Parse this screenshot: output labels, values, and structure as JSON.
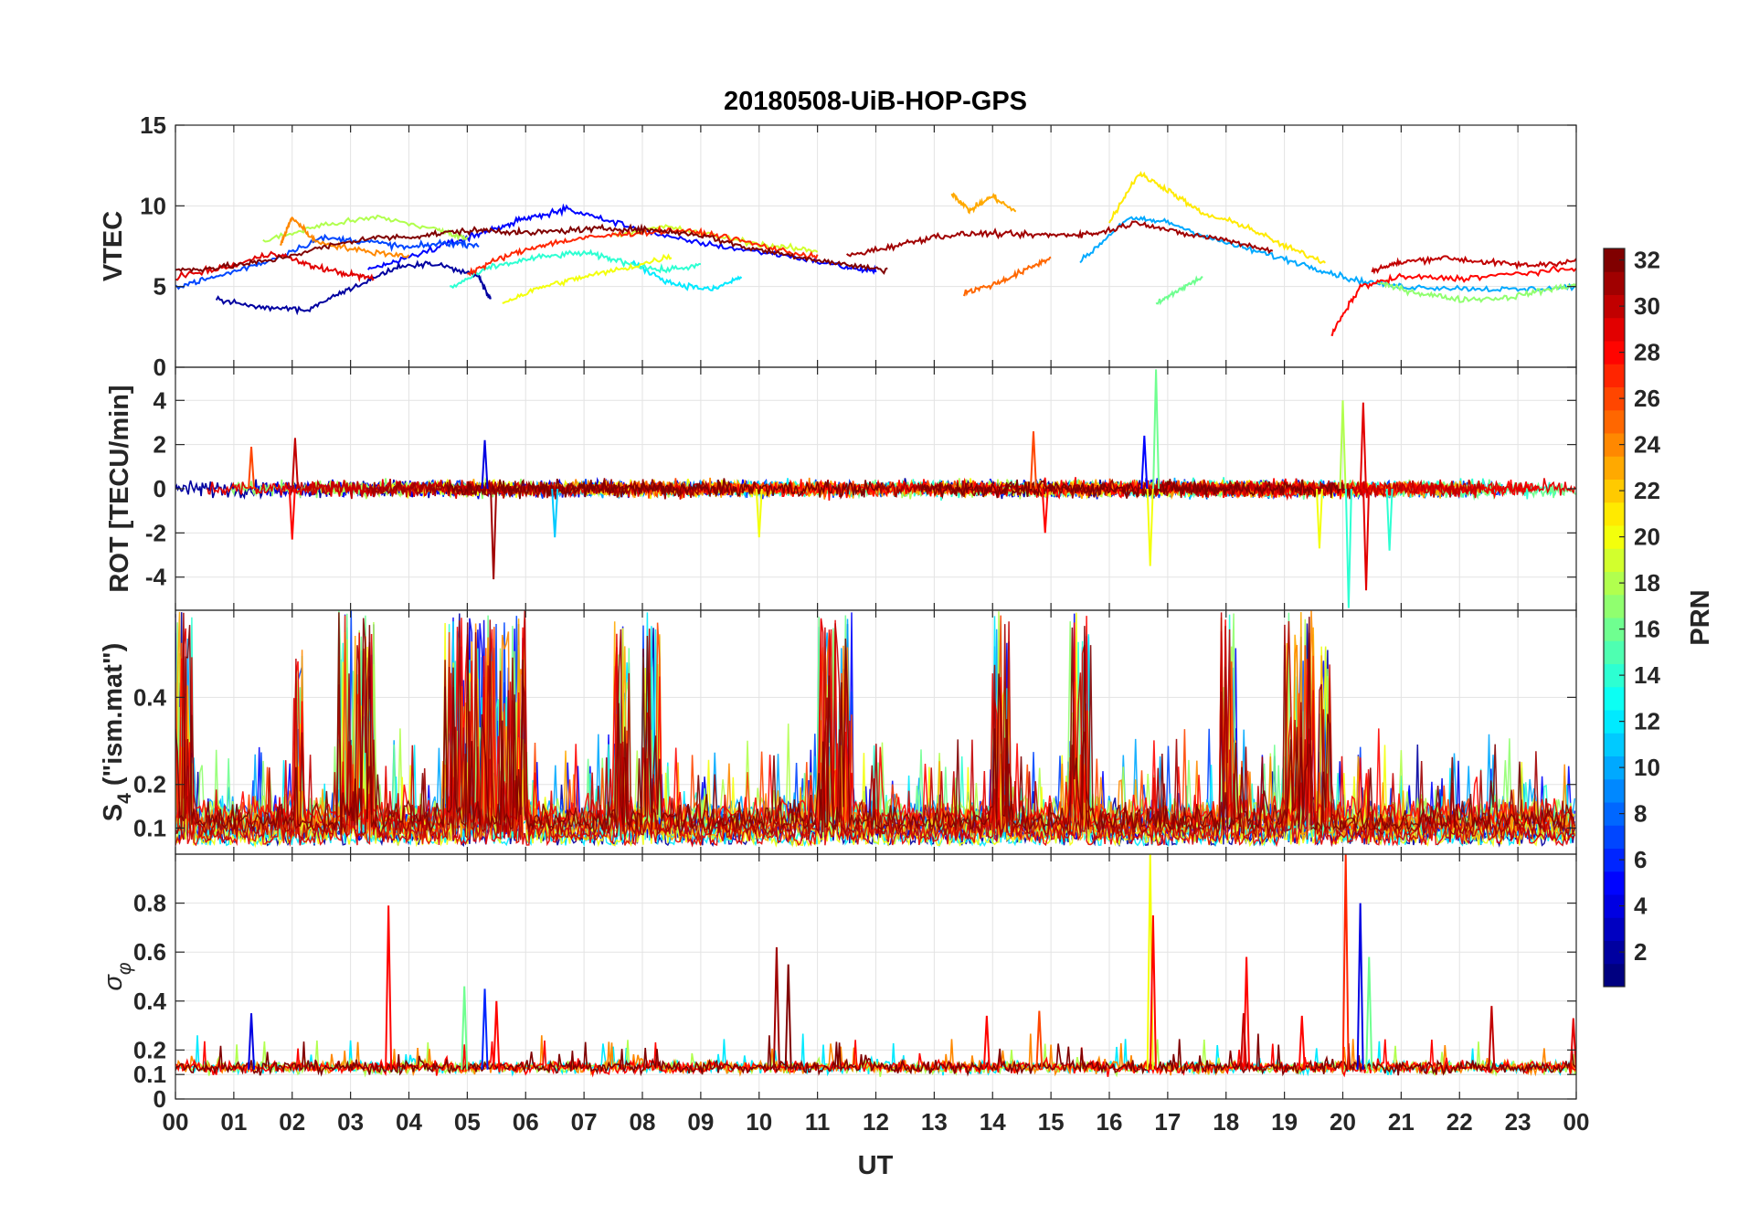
{
  "chart_data": {
    "type": "line",
    "title": "20180508-UiB-HOP-GPS",
    "xlabel": "UT",
    "x_ticks": [
      "00",
      "01",
      "02",
      "03",
      "04",
      "05",
      "06",
      "07",
      "08",
      "09",
      "10",
      "11",
      "12",
      "13",
      "14",
      "15",
      "16",
      "17",
      "18",
      "19",
      "20",
      "21",
      "22",
      "23",
      "00"
    ],
    "xlim": [
      0,
      24
    ],
    "panels": [
      {
        "name": "vtec",
        "ylabel": "VTEC",
        "ylim": [
          0,
          15
        ],
        "yticks": [
          0,
          5,
          10,
          15
        ],
        "series": [
          {
            "prn": 2,
            "x": [
              0.7,
              1.5,
              2.3,
              3.0,
              3.8,
              4.4,
              5.2,
              5.4
            ],
            "y": [
              4.2,
              3.7,
              3.6,
              4.9,
              6.2,
              6.5,
              5.6,
              4.1
            ]
          },
          {
            "prn": 5,
            "x": [
              3.3,
              4.0,
              4.8,
              5.4,
              6.0,
              6.7,
              7.5,
              8.5,
              9.5,
              10.5,
              11.5,
              12.0
            ],
            "y": [
              6.0,
              6.8,
              7.8,
              8.5,
              9.2,
              9.8,
              9.0,
              8.0,
              7.4,
              6.9,
              6.2,
              5.9
            ]
          },
          {
            "prn": 7,
            "x": [
              0.0,
              0.7,
              1.6,
              2.5,
              3.3,
              4.0,
              4.6,
              5.2
            ],
            "y": [
              5.0,
              5.6,
              6.6,
              8.0,
              7.8,
              7.4,
              7.7,
              7.6
            ]
          },
          {
            "prn": 10,
            "x": [
              15.5,
              16.3,
              17.0,
              17.8,
              18.6,
              19.4,
              20.2,
              21.0,
              22.0,
              23.0,
              24.0
            ],
            "y": [
              6.5,
              9.2,
              9.0,
              7.9,
              7.1,
              6.3,
              5.4,
              5.0,
              4.9,
              4.8,
              5.0
            ]
          },
          {
            "prn": 12,
            "x": [
              7.8,
              8.5,
              9.2,
              9.7
            ],
            "y": [
              6.5,
              5.2,
              4.8,
              5.6
            ]
          },
          {
            "prn": 14,
            "x": [
              4.7,
              5.4,
              6.2,
              7.0,
              7.6,
              8.3,
              9.0
            ],
            "y": [
              4.9,
              6.2,
              6.8,
              7.1,
              6.6,
              6.0,
              6.3
            ]
          },
          {
            "prn": 16,
            "x": [
              16.8,
              17.2,
              17.6
            ],
            "y": [
              3.9,
              4.8,
              5.6
            ]
          },
          {
            "prn": 17,
            "x": [
              20.6,
              21.3,
              22.0,
              22.8,
              23.5,
              24.0
            ],
            "y": [
              5.2,
              4.6,
              4.2,
              4.3,
              4.8,
              5.1
            ]
          },
          {
            "prn": 18,
            "x": [
              1.5,
              2.5,
              3.5,
              4.5,
              5.0
            ],
            "y": [
              7.8,
              8.8,
              9.3,
              8.5,
              8.0
            ]
          },
          {
            "prn": 19,
            "x": [
              7.5,
              8.4,
              9.3,
              10.2,
              11.0
            ],
            "y": [
              8.2,
              8.7,
              8.1,
              7.5,
              7.2
            ]
          },
          {
            "prn": 20,
            "x": [
              5.6,
              6.3,
              7.0,
              7.8,
              8.5
            ],
            "y": [
              4.0,
              5.0,
              5.6,
              6.2,
              6.9
            ]
          },
          {
            "prn": 21,
            "x": [
              16.0,
              16.5,
              17.0,
              17.6,
              18.3,
              19.0,
              19.7
            ],
            "y": [
              9.0,
              12.0,
              11.0,
              9.5,
              8.8,
              7.5,
              6.5
            ]
          },
          {
            "prn": 23,
            "x": [
              13.3,
              13.6,
              14.0,
              14.4
            ],
            "y": [
              10.8,
              9.7,
              10.6,
              9.6
            ]
          },
          {
            "prn": 24,
            "x": [
              1.8,
              2.0,
              2.4,
              3.2,
              4.0
            ],
            "y": [
              7.6,
              9.3,
              7.8,
              7.2,
              6.9
            ]
          },
          {
            "prn": 25,
            "x": [
              13.5,
              14.0,
              14.5,
              15.0
            ],
            "y": [
              4.6,
              5.1,
              5.9,
              6.8
            ]
          },
          {
            "prn": 27,
            "x": [
              5.0,
              5.6,
              6.3,
              7.0,
              7.8,
              8.6,
              9.4,
              10.3,
              11.0
            ],
            "y": [
              5.8,
              6.8,
              7.6,
              8.0,
              8.3,
              8.5,
              8.1,
              7.3,
              6.8
            ]
          },
          {
            "prn": 28,
            "x": [
              19.8,
              20.3,
              21.0,
              22.0,
              23.0,
              24.0
            ],
            "y": [
              2.0,
              5.0,
              5.6,
              5.5,
              5.8,
              6.1
            ]
          },
          {
            "prn": 29,
            "x": [
              0.0,
              0.9,
              1.7,
              2.3,
              2.9,
              3.4
            ],
            "y": [
              5.6,
              6.2,
              7.1,
              6.3,
              5.8,
              5.5
            ]
          },
          {
            "prn": 31,
            "x": [
              11.5,
              12.3,
              13.0,
              13.8,
              14.5,
              15.2,
              15.8,
              16.5,
              17.2,
              18.0,
              18.8
            ],
            "y": [
              6.9,
              7.5,
              8.1,
              8.3,
              8.2,
              8.2,
              8.3,
              9.0,
              8.3,
              7.9,
              7.2
            ]
          },
          {
            "prn": 32,
            "x": [
              0.0,
              0.8,
              1.6,
              2.5,
              3.3,
              4.1,
              4.8,
              5.4,
              6.0,
              6.8,
              7.5,
              8.2,
              9.0,
              9.8,
              10.6,
              11.4,
              12.2
            ],
            "y": [
              6.0,
              6.2,
              6.6,
              7.4,
              8.0,
              8.1,
              8.4,
              8.5,
              8.3,
              8.5,
              8.6,
              8.5,
              8.2,
              7.4,
              6.9,
              6.4,
              6.0
            ]
          },
          {
            "prn": 30,
            "x": [
              20.5,
              21.0,
              21.7,
              22.5,
              23.2,
              24.0
            ],
            "y": [
              6.0,
              6.5,
              6.8,
              6.5,
              6.3,
              6.6
            ]
          }
        ]
      },
      {
        "name": "rot",
        "ylabel": "ROT [TECU/min]",
        "ylim": [
          -5.5,
          5.5
        ],
        "yticks": [
          -4,
          -2,
          0,
          2,
          4
        ],
        "spikes": [
          {
            "x": 1.3,
            "y": 1.9,
            "prn": 26
          },
          {
            "x": 2.0,
            "y": -2.3,
            "prn": 28
          },
          {
            "x": 2.05,
            "y": 2.3,
            "prn": 30
          },
          {
            "x": 5.45,
            "y": -4.1,
            "prn": 31
          },
          {
            "x": 5.3,
            "y": 2.2,
            "prn": 4
          },
          {
            "x": 6.5,
            "y": -2.2,
            "prn": 11
          },
          {
            "x": 10.0,
            "y": -2.2,
            "prn": 20
          },
          {
            "x": 14.7,
            "y": 2.6,
            "prn": 26
          },
          {
            "x": 14.9,
            "y": -2.0,
            "prn": 28
          },
          {
            "x": 16.8,
            "y": 5.4,
            "prn": 16
          },
          {
            "x": 16.7,
            "y": -3.5,
            "prn": 20
          },
          {
            "x": 16.6,
            "y": 2.4,
            "prn": 5
          },
          {
            "x": 19.6,
            "y": -2.7,
            "prn": 20
          },
          {
            "x": 20.0,
            "y": 4.0,
            "prn": 18
          },
          {
            "x": 20.1,
            "y": -5.4,
            "prn": 14
          },
          {
            "x": 20.35,
            "y": 3.9,
            "prn": 29
          },
          {
            "x": 20.4,
            "y": -4.6,
            "prn": 29
          },
          {
            "x": 20.8,
            "y": -2.8,
            "prn": 14
          }
        ]
      },
      {
        "name": "s4",
        "ylabel": "S4 (\"ism.mat\")",
        "ylabel_main": "S",
        "ylabel_sub": "4",
        "ylabel_rest": " (\"ism.mat\")",
        "ylim": [
          0.04,
          0.6
        ],
        "yticks": [
          0.1,
          0.2,
          0.4
        ],
        "active_windows": [
          {
            "x": [
              0.0,
              0.3
            ],
            "peak": 0.6,
            "prn": 12
          },
          {
            "x": [
              2.0,
              2.2
            ],
            "peak": 0.52,
            "prn": 6
          },
          {
            "x": [
              2.8,
              3.4
            ],
            "peak": 0.6,
            "prn": 29
          },
          {
            "x": [
              4.6,
              6.0
            ],
            "peak": 0.6,
            "prn": 13
          },
          {
            "x": [
              7.5,
              7.8
            ],
            "peak": 0.6,
            "prn": 13
          },
          {
            "x": [
              8.0,
              8.3
            ],
            "peak": 0.6,
            "prn": 23
          },
          {
            "x": [
              11.0,
              11.6
            ],
            "peak": 0.6,
            "prn": 32
          },
          {
            "x": [
              14.0,
              14.3
            ],
            "peak": 0.6,
            "prn": 22
          },
          {
            "x": [
              15.3,
              15.7
            ],
            "peak": 0.6,
            "prn": 12
          },
          {
            "x": [
              17.9,
              18.2
            ],
            "peak": 0.6,
            "prn": 29
          },
          {
            "x": [
              19.0,
              19.5
            ],
            "peak": 0.6,
            "prn": 28
          },
          {
            "x": [
              19.6,
              19.8
            ],
            "peak": 0.52,
            "prn": 20
          }
        ]
      },
      {
        "name": "sigma_phi",
        "ylabel": "σ φ",
        "ylabel_main": "σ",
        "ylabel_sub": "φ",
        "ylim": [
          0,
          1
        ],
        "yticks": [
          0,
          0.1,
          0.2,
          0.4,
          0.6,
          0.8
        ],
        "spikes": [
          {
            "x": 1.3,
            "y": 0.35,
            "prn": 4
          },
          {
            "x": 3.65,
            "y": 0.79,
            "prn": 28
          },
          {
            "x": 4.95,
            "y": 0.46,
            "prn": 16
          },
          {
            "x": 5.3,
            "y": 0.45,
            "prn": 6
          },
          {
            "x": 5.5,
            "y": 0.4,
            "prn": 28
          },
          {
            "x": 10.3,
            "y": 0.62,
            "prn": 31
          },
          {
            "x": 10.5,
            "y": 0.55,
            "prn": 32
          },
          {
            "x": 13.9,
            "y": 0.34,
            "prn": 28
          },
          {
            "x": 14.8,
            "y": 0.36,
            "prn": 26
          },
          {
            "x": 16.7,
            "y": 1.0,
            "prn": 20
          },
          {
            "x": 16.75,
            "y": 0.75,
            "prn": 28
          },
          {
            "x": 18.35,
            "y": 0.58,
            "prn": 28
          },
          {
            "x": 18.3,
            "y": 0.35,
            "prn": 30
          },
          {
            "x": 19.3,
            "y": 0.34,
            "prn": 28
          },
          {
            "x": 20.05,
            "y": 1.0,
            "prn": 27
          },
          {
            "x": 20.3,
            "y": 0.8,
            "prn": 4
          },
          {
            "x": 20.45,
            "y": 0.58,
            "prn": 16
          },
          {
            "x": 22.55,
            "y": 0.38,
            "prn": 30
          },
          {
            "x": 23.95,
            "y": 0.33,
            "prn": 29
          }
        ]
      }
    ],
    "colorbar": {
      "label": "PRN",
      "range": [
        1,
        32
      ],
      "ticks": [
        2,
        4,
        6,
        8,
        10,
        12,
        14,
        16,
        18,
        20,
        22,
        24,
        26,
        28,
        30,
        32
      ],
      "colormap": "jet"
    }
  }
}
